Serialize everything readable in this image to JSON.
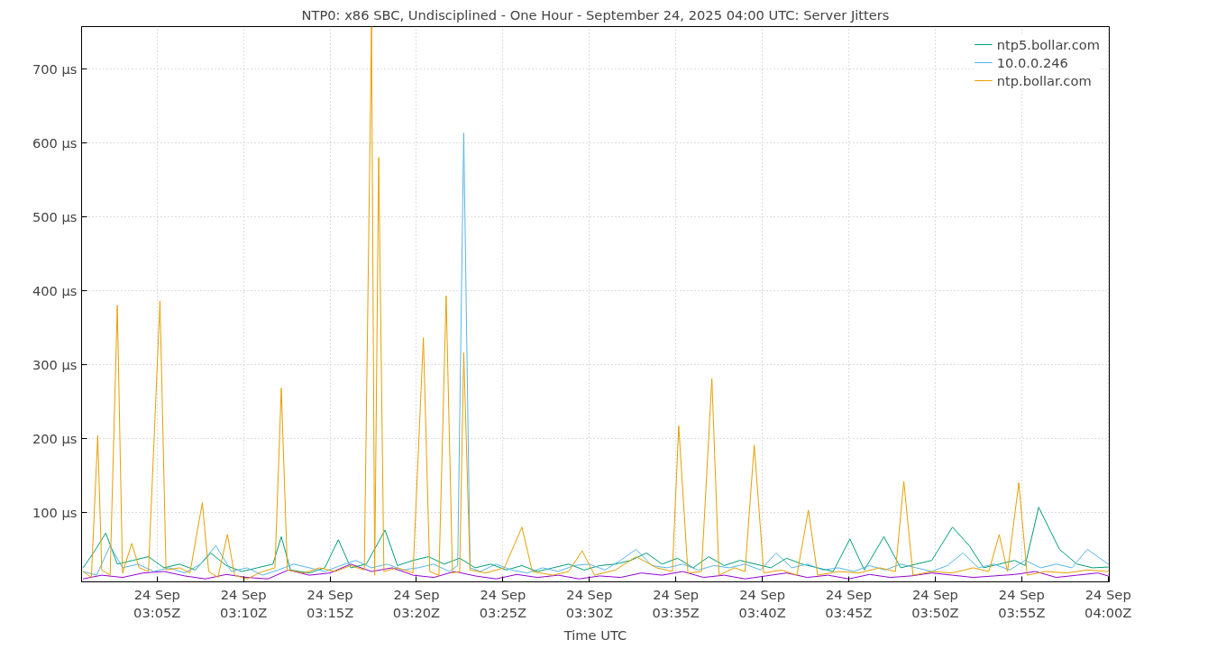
{
  "chart_data": {
    "type": "line",
    "title": "NTP0: x86 SBC, Undisciplined - One Hour - September 24, 2025 04:00 UTC: Server Jitters",
    "xlabel": "Time UTC",
    "xlim": [
      "2025-09-24T03:00:38",
      "2025-09-24T04:00:04"
    ],
    "ylim": [
      6,
      757
    ],
    "xticks": [
      {
        "value": "2025-09-24T03:05",
        "label": "24 Sep\n03:05Z"
      },
      {
        "value": "2025-09-24T03:10",
        "label": "24 Sep\n03:10Z"
      },
      {
        "value": "2025-09-24T03:15",
        "label": "24 Sep\n03:15Z"
      },
      {
        "value": "2025-09-24T03:20",
        "label": "24 Sep\n03:20Z"
      },
      {
        "value": "2025-09-24T03:25",
        "label": "24 Sep\n03:25Z"
      },
      {
        "value": "2025-09-24T03:30",
        "label": "24 Sep\n03:30Z"
      },
      {
        "value": "2025-09-24T03:35",
        "label": "24 Sep\n03:35Z"
      },
      {
        "value": "2025-09-24T03:40",
        "label": "24 Sep\n03:40Z"
      },
      {
        "value": "2025-09-24T03:45",
        "label": "24 Sep\n03:45Z"
      },
      {
        "value": "2025-09-24T03:50",
        "label": "24 Sep\n03:50Z"
      },
      {
        "value": "2025-09-24T03:55",
        "label": "24 Sep\n03:55Z"
      },
      {
        "value": "2025-09-24T04:00",
        "label": "24 Sep\n04:00Z"
      }
    ],
    "yticks": [
      {
        "value": 100,
        "label": "100 µs"
      },
      {
        "value": 200,
        "label": "200 µs"
      },
      {
        "value": 300,
        "label": "300 µs"
      },
      {
        "value": 400,
        "label": "400 µs"
      },
      {
        "value": 500,
        "label": "500 µs"
      },
      {
        "value": 600,
        "label": "600 µs"
      },
      {
        "value": 700,
        "label": "700 µs"
      }
    ],
    "grid": true,
    "legend": "top right",
    "line_style": "solid",
    "series": [
      {
        "color": "#9400d3",
        "x": [
          "2025-09-24T03:00:43",
          "2025-09-24T03:01:48",
          "2025-09-24T03:03:00",
          "2025-09-24T03:04:12",
          "2025-09-24T03:05:24",
          "2025-09-24T03:06:36",
          "2025-09-24T03:07:48",
          "2025-09-24T03:09:00",
          "2025-09-24T03:10:12",
          "2025-09-24T03:11:24",
          "2025-09-24T03:12:36",
          "2025-09-24T03:13:48",
          "2025-09-24T03:15:00",
          "2025-09-24T03:16:12",
          "2025-09-24T03:17:24",
          "2025-09-24T03:18:36",
          "2025-09-24T03:19:48",
          "2025-09-24T03:21:00",
          "2025-09-24T03:22:12",
          "2025-09-24T03:23:24",
          "2025-09-24T03:24:36",
          "2025-09-24T03:25:48",
          "2025-09-24T03:27:00",
          "2025-09-24T03:28:12",
          "2025-09-24T03:29:24",
          "2025-09-24T03:30:36",
          "2025-09-24T03:31:48",
          "2025-09-24T03:33:00",
          "2025-09-24T03:34:12",
          "2025-09-24T03:35:24",
          "2025-09-24T03:36:36",
          "2025-09-24T03:37:48",
          "2025-09-24T03:39:00",
          "2025-09-24T03:40:12",
          "2025-09-24T03:41:24",
          "2025-09-24T03:42:36",
          "2025-09-24T03:43:48",
          "2025-09-24T03:45:00",
          "2025-09-24T03:46:12",
          "2025-09-24T03:47:24",
          "2025-09-24T03:48:36",
          "2025-09-24T03:49:48",
          "2025-09-24T03:51:00",
          "2025-09-24T03:52:12",
          "2025-09-24T03:53:24",
          "2025-09-24T03:54:36",
          "2025-09-24T03:55:48",
          "2025-09-24T03:57:00",
          "2025-09-24T03:58:12",
          "2025-09-24T03:59:24",
          "2025-09-24T04:00:00"
        ],
        "values": [
          10,
          15,
          12,
          18,
          20,
          14,
          10,
          16,
          12,
          10,
          22,
          15,
          18,
          30,
          20,
          25,
          15,
          12,
          20,
          14,
          10,
          16,
          12,
          15,
          10,
          14,
          12,
          18,
          15,
          20,
          12,
          15,
          10,
          14,
          18,
          12,
          15,
          10,
          16,
          12,
          14,
          18,
          15,
          12,
          14,
          16,
          20,
          12,
          15,
          18,
          14
        ]
      },
      {
        "name": "ntp5.bollar.com",
        "color": "#009e73",
        "x": [
          "2025-09-24T03:00:43",
          "2025-09-24T03:01:19",
          "2025-09-24T03:02:02",
          "2025-09-24T03:02:42",
          "2025-09-24T03:03:36",
          "2025-09-24T03:04:30",
          "2025-09-24T03:05:24",
          "2025-09-24T03:06:18",
          "2025-09-24T03:07:12",
          "2025-09-24T03:08:06",
          "2025-09-24T03:09:00",
          "2025-09-24T03:09:54",
          "2025-09-24T03:10:48",
          "2025-09-24T03:11:42",
          "2025-09-24T03:12:11",
          "2025-09-24T03:12:43",
          "2025-09-24T03:13:48",
          "2025-09-24T03:14:42",
          "2025-09-24T03:15:29",
          "2025-09-24T03:16:12",
          "2025-09-24T03:17:06",
          "2025-09-24T03:18:11",
          "2025-09-24T03:18:54",
          "2025-09-24T03:19:48",
          "2025-09-24T03:20:42",
          "2025-09-24T03:21:36",
          "2025-09-24T03:22:30",
          "2025-09-24T03:23:24",
          "2025-09-24T03:24:18",
          "2025-09-24T03:25:12",
          "2025-09-24T03:26:06",
          "2025-09-24T03:27:00",
          "2025-09-24T03:27:54",
          "2025-09-24T03:28:48",
          "2025-09-24T03:29:42",
          "2025-09-24T03:30:36",
          "2025-09-24T03:31:30",
          "2025-09-24T03:32:24",
          "2025-09-24T03:33:18",
          "2025-09-24T03:34:12",
          "2025-09-24T03:35:06",
          "2025-09-24T03:36:00",
          "2025-09-24T03:36:54",
          "2025-09-24T03:37:48",
          "2025-09-24T03:38:42",
          "2025-09-24T03:39:36",
          "2025-09-24T03:40:30",
          "2025-09-24T03:41:24",
          "2025-09-24T03:42:18",
          "2025-09-24T03:43:12",
          "2025-09-24T03:44:06",
          "2025-09-24T03:45:04",
          "2025-09-24T03:45:54",
          "2025-09-24T03:47:02",
          "2025-09-24T03:48:00",
          "2025-09-24T03:48:54",
          "2025-09-24T03:49:48",
          "2025-09-24T03:51:00",
          "2025-09-24T03:51:58",
          "2025-09-24T03:52:48",
          "2025-09-24T03:53:42",
          "2025-09-24T03:54:36",
          "2025-09-24T03:55:12",
          "2025-09-24T03:55:59",
          "2025-09-24T03:57:11",
          "2025-09-24T03:58:12",
          "2025-09-24T03:59:06",
          "2025-09-24T04:00:00"
        ],
        "values": [
          25,
          45,
          72,
          30,
          35,
          40,
          25,
          30,
          22,
          45,
          28,
          20,
          25,
          30,
          67,
          22,
          18,
          25,
          63,
          25,
          30,
          76,
          28,
          35,
          40,
          30,
          38,
          25,
          30,
          22,
          28,
          20,
          25,
          30,
          22,
          28,
          30,
          35,
          45,
          30,
          38,
          25,
          40,
          28,
          35,
          30,
          25,
          38,
          30,
          25,
          20,
          64,
          22,
          67,
          25,
          30,
          35,
          80,
          55,
          25,
          30,
          35,
          28,
          107,
          50,
          30,
          25,
          26
        ]
      },
      {
        "name": "10.0.0.246",
        "color": "#56b4e9",
        "x": [
          "2025-09-24T03:00:43",
          "2025-09-24T03:01:30",
          "2025-09-24T03:02:17",
          "2025-09-24T03:03:00",
          "2025-09-24T03:03:54",
          "2025-09-24T03:04:48",
          "2025-09-24T03:05:42",
          "2025-09-24T03:06:36",
          "2025-09-24T03:07:30",
          "2025-09-24T03:08:24",
          "2025-09-24T03:09:18",
          "2025-09-24T03:10:12",
          "2025-09-24T03:11:06",
          "2025-09-24T03:12:00",
          "2025-09-24T03:12:54",
          "2025-09-24T03:13:48",
          "2025-09-24T03:14:42",
          "2025-09-24T03:15:36",
          "2025-09-24T03:16:30",
          "2025-09-24T03:17:24",
          "2025-09-24T03:18:18",
          "2025-09-24T03:19:12",
          "2025-09-24T03:20:06",
          "2025-09-24T03:21:00",
          "2025-09-24T03:21:54",
          "2025-09-24T03:22:23",
          "2025-09-24T03:22:44",
          "2025-09-24T03:23:06",
          "2025-09-24T03:23:42",
          "2025-09-24T03:24:36",
          "2025-09-24T03:25:30",
          "2025-09-24T03:26:24",
          "2025-09-24T03:27:18",
          "2025-09-24T03:28:12",
          "2025-09-24T03:29:06",
          "2025-09-24T03:30:00",
          "2025-09-24T03:30:54",
          "2025-09-24T03:31:48",
          "2025-09-24T03:32:42",
          "2025-09-24T03:33:36",
          "2025-09-24T03:34:30",
          "2025-09-24T03:35:24",
          "2025-09-24T03:36:18",
          "2025-09-24T03:37:12",
          "2025-09-24T03:38:06",
          "2025-09-24T03:39:00",
          "2025-09-24T03:39:54",
          "2025-09-24T03:40:48",
          "2025-09-24T03:41:42",
          "2025-09-24T03:42:36",
          "2025-09-24T03:43:30",
          "2025-09-24T03:44:24",
          "2025-09-24T03:45:18",
          "2025-09-24T03:46:12",
          "2025-09-24T03:47:06",
          "2025-09-24T03:48:00",
          "2025-09-24T03:48:54",
          "2025-09-24T03:49:48",
          "2025-09-24T03:50:42",
          "2025-09-24T03:51:36",
          "2025-09-24T03:52:30",
          "2025-09-24T03:53:24",
          "2025-09-24T03:54:18",
          "2025-09-24T03:55:12",
          "2025-09-24T03:56:06",
          "2025-09-24T03:57:00",
          "2025-09-24T03:57:54",
          "2025-09-24T03:58:48",
          "2025-09-24T04:00:00"
        ],
        "values": [
          20,
          15,
          55,
          25,
          30,
          20,
          25,
          18,
          30,
          55,
          20,
          25,
          15,
          22,
          30,
          25,
          20,
          28,
          35,
          25,
          30,
          22,
          25,
          30,
          20,
          28,
          613,
          25,
          20,
          30,
          22,
          18,
          25,
          20,
          28,
          30,
          22,
          35,
          50,
          28,
          25,
          30,
          22,
          28,
          25,
          30,
          22,
          45,
          25,
          30,
          22,
          25,
          20,
          28,
          22,
          30,
          25,
          20,
          28,
          45,
          25,
          30,
          22,
          35,
          25,
          30,
          25,
          50,
          30
        ]
      },
      {
        "name": "ntp.bollar.com",
        "color": "#e69f00",
        "x": [
          "2025-09-24T03:00:43",
          "2025-09-24T03:01:12",
          "2025-09-24T03:01:34",
          "2025-09-24T03:01:48",
          "2025-09-24T03:02:17",
          "2025-09-24T03:02:42",
          "2025-09-24T03:03:00",
          "2025-09-24T03:03:32",
          "2025-09-24T03:03:58",
          "2025-09-24T03:04:30",
          "2025-09-24T03:05:10",
          "2025-09-24T03:05:31",
          "2025-09-24T03:06:18",
          "2025-09-24T03:06:54",
          "2025-09-24T03:07:37",
          "2025-09-24T03:07:59",
          "2025-09-24T03:08:31",
          "2025-09-24T03:09:04",
          "2025-09-24T03:09:29",
          "2025-09-24T03:10:12",
          "2025-09-24T03:11:06",
          "2025-09-24T03:11:49",
          "2025-09-24T03:12:11",
          "2025-09-24T03:12:32",
          "2025-09-24T03:13:30",
          "2025-09-24T03:14:24",
          "2025-09-24T03:15:18",
          "2025-09-24T03:16:12",
          "2025-09-24T03:16:59",
          "2025-09-24T03:17:24",
          "2025-09-24T03:17:35",
          "2025-09-24T03:17:49",
          "2025-09-24T03:18:07",
          "2025-09-24T03:18:54",
          "2025-09-24T03:19:48",
          "2025-09-24T03:20:24",
          "2025-09-24T03:20:46",
          "2025-09-24T03:21:18",
          "2025-09-24T03:21:43",
          "2025-09-24T03:22:05",
          "2025-09-24T03:22:30",
          "2025-09-24T03:22:44",
          "2025-09-24T03:23:06",
          "2025-09-24T03:24:00",
          "2025-09-24T03:25:05",
          "2025-09-24T03:26:06",
          "2025-09-24T03:26:42",
          "2025-09-24T03:27:54",
          "2025-09-24T03:28:48",
          "2025-09-24T03:29:35",
          "2025-09-24T03:30:18",
          "2025-09-24T03:31:30",
          "2025-09-24T03:32:42",
          "2025-09-24T03:33:54",
          "2025-09-24T03:34:48",
          "2025-09-24T03:35:10",
          "2025-09-24T03:35:42",
          "2025-09-24T03:36:29",
          "2025-09-24T03:37:05",
          "2025-09-24T03:37:30",
          "2025-09-24T03:38:24",
          "2025-09-24T03:39:00",
          "2025-09-24T03:39:32",
          "2025-09-24T03:40:05",
          "2025-09-24T03:41:06",
          "2025-09-24T03:42:00",
          "2025-09-24T03:42:40",
          "2025-09-24T03:43:12",
          "2025-09-24T03:44:24",
          "2025-09-24T03:45:36",
          "2025-09-24T03:46:48",
          "2025-09-24T03:47:42",
          "2025-09-24T03:48:11",
          "2025-09-24T03:48:43",
          "2025-09-24T03:49:48",
          "2025-09-24T03:51:00",
          "2025-09-24T03:52:12",
          "2025-09-24T03:53:06",
          "2025-09-24T03:53:42",
          "2025-09-24T03:54:11",
          "2025-09-24T03:54:50",
          "2025-09-24T03:55:19",
          "2025-09-24T03:56:24",
          "2025-09-24T03:57:36",
          "2025-09-24T03:58:48",
          "2025-09-24T04:00:00"
        ],
        "values": [
          20,
          12,
          204,
          22,
          15,
          380,
          18,
          58,
          25,
          20,
          386,
          22,
          25,
          18,
          113,
          20,
          12,
          70,
          15,
          10,
          20,
          25,
          268,
          22,
          18,
          25,
          20,
          28,
          22,
          757,
          15,
          580,
          20,
          25,
          18,
          336,
          20,
          15,
          393,
          18,
          20,
          316,
          22,
          18,
          25,
          80,
          20,
          15,
          20,
          48,
          15,
          22,
          40,
          25,
          20,
          217,
          18,
          20,
          281,
          15,
          25,
          20,
          191,
          18,
          22,
          15,
          103,
          15,
          20,
          18,
          25,
          20,
          142,
          15,
          20,
          18,
          25,
          20,
          70,
          20,
          140,
          15,
          20,
          18,
          22,
          20
        ]
      }
    ]
  }
}
